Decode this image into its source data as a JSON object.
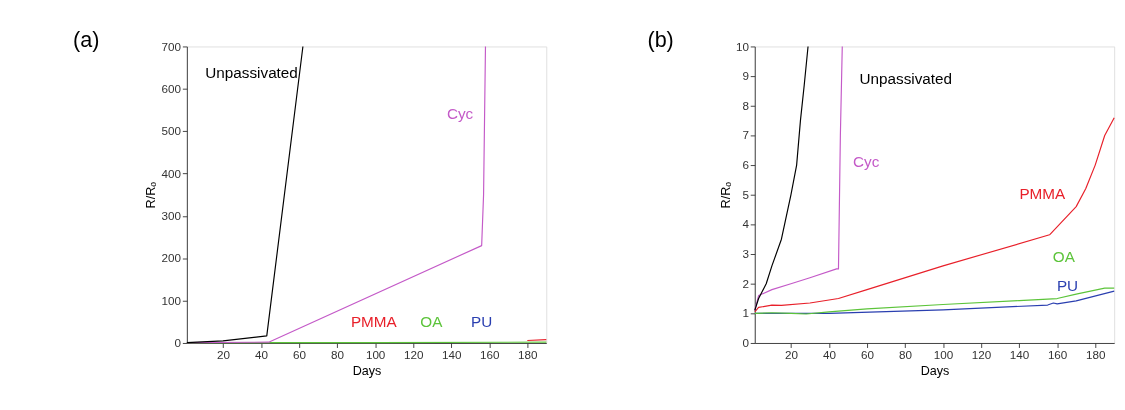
{
  "chart_data": [
    {
      "type": "line",
      "title": "(a)",
      "xlabel": "Days",
      "ylabel": "R/Rₒ",
      "xlim": [
        1,
        190
      ],
      "ylim": [
        0,
        700
      ],
      "xticks": [
        20,
        40,
        60,
        80,
        100,
        120,
        140,
        160,
        180
      ],
      "yticks": [
        0,
        100,
        200,
        300,
        400,
        500,
        600,
        700
      ],
      "grid": false,
      "marker": "none",
      "line_style": "solid",
      "series": [
        {
          "name": "Unpassivated",
          "color": "#000000",
          "x": [
            1,
            20,
            43,
            62
          ],
          "values": [
            1,
            5,
            17,
            700
          ]
        },
        {
          "name": "Cyc",
          "color": "#c45ac8",
          "x": [
            1,
            44,
            156,
            157,
            158
          ],
          "values": [
            1,
            2,
            230,
            350,
            700
          ]
        },
        {
          "name": "PMMA",
          "color": "#e8202a",
          "x": [
            180,
            190
          ],
          "values": [
            6,
            8
          ]
        },
        {
          "name": "OA",
          "color": "#5cc43a",
          "x": [
            1,
            100,
            190
          ],
          "values": [
            1,
            1,
            2
          ]
        },
        {
          "name": "PU",
          "color": "#2a3fb0"
        }
      ]
    },
    {
      "type": "line",
      "title": "(b)",
      "xlabel": "Days",
      "ylabel": "R/Rₒ",
      "xlim": [
        1,
        190
      ],
      "ylim": [
        0,
        10
      ],
      "xticks": [
        20,
        40,
        60,
        80,
        100,
        120,
        140,
        160,
        180
      ],
      "yticks": [
        0,
        1,
        2,
        3,
        4,
        5,
        6,
        7,
        8,
        9,
        10
      ],
      "grid": false,
      "marker": "none",
      "line_style": "solid",
      "series": [
        {
          "name": "Unpassivated",
          "color": "#000000",
          "x": [
            1,
            3,
            7,
            10,
            15,
            20,
            23,
            25,
            27,
            29
          ],
          "values": [
            1.1,
            1.5,
            2.0,
            2.6,
            3.5,
            5.0,
            6.0,
            7.5,
            8.7,
            10
          ]
        },
        {
          "name": "Cyc",
          "color": "#c45ac8",
          "x": [
            1,
            3,
            10,
            20,
            30,
            44,
            45,
            46,
            47
          ],
          "values": [
            1.1,
            1.6,
            1.8,
            2.0,
            2.2,
            2.5,
            2.5,
            7,
            10
          ]
        },
        {
          "name": "PMMA",
          "color": "#e8202a",
          "x": [
            1,
            3,
            10,
            15,
            30,
            45,
            60,
            100,
            156,
            170,
            175,
            180,
            185,
            190
          ],
          "values": [
            1.05,
            1.2,
            1.28,
            1.27,
            1.35,
            1.5,
            1.8,
            2.6,
            3.65,
            4.6,
            5.2,
            6.0,
            7.0,
            7.6
          ]
        },
        {
          "name": "OA",
          "color": "#5cc43a",
          "x": [
            1,
            10,
            20,
            28,
            40,
            60,
            100,
            140,
            160,
            170,
            185,
            190
          ],
          "values": [
            1.0,
            1.02,
            1.0,
            0.98,
            1.05,
            1.15,
            1.3,
            1.43,
            1.5,
            1.65,
            1.85,
            1.85
          ]
        },
        {
          "name": "PU",
          "color": "#2a3fb0",
          "x": [
            1,
            28,
            40,
            100,
            155,
            158,
            160,
            170,
            190
          ],
          "values": [
            1.0,
            1.0,
            1.0,
            1.12,
            1.28,
            1.35,
            1.32,
            1.42,
            1.75
          ]
        }
      ]
    }
  ]
}
